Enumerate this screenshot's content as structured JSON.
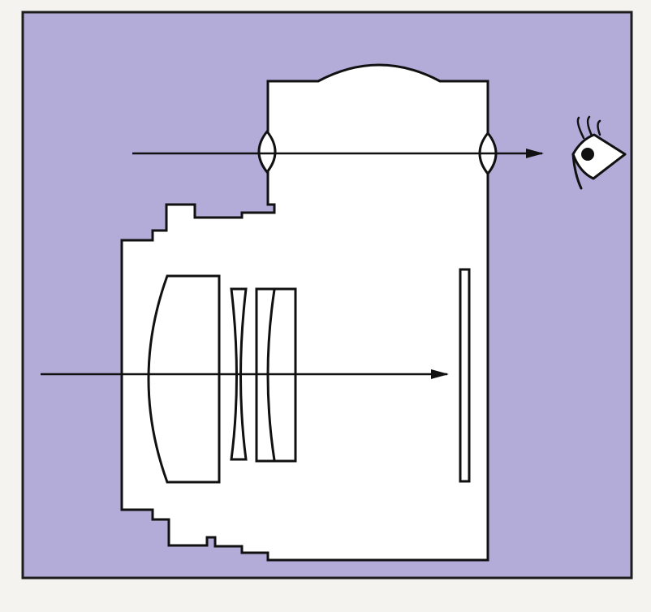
{
  "colors": {
    "page": "#f4f3ef",
    "panel_fill": "#b3abd8",
    "panel_border": "#1d1d1d",
    "camera_body": "#ffffff",
    "line": "#111111"
  },
  "icons": {
    "eye": "eye-icon"
  },
  "figure": {
    "kind": "rangefinder-camera-optics-schematic",
    "components": [
      "viewfinder",
      "taking-lens",
      "image-sensor",
      "optical-paths",
      "eye"
    ]
  }
}
